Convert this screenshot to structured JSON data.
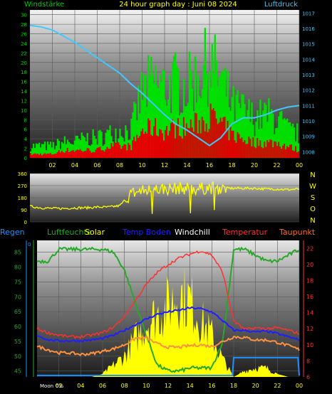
{
  "title": "24 hour graph day : Juni 08 2024",
  "colors": {
    "wind_gust": "#00e000",
    "wind_avg": "#e00000",
    "pressure": "#40c8ff",
    "direction": "#ffff00",
    "humidity": "#28a828",
    "solar": "#ffff00",
    "temp_ground": "#2020ff",
    "temperature": "#ff3030",
    "dewpoint": "#ff9040",
    "windchill": "#ffffff",
    "rain": "#1e90ff"
  },
  "chart_data": [
    {
      "type": "bar",
      "title": "24 hour graph day : Juni 08 2024",
      "left_axis_label": "Windstärke",
      "right_axis_label": "Luftdruck",
      "x_ticks": [
        "02",
        "04",
        "06",
        "08",
        "10",
        "12",
        "14",
        "16",
        "18",
        "20",
        "22",
        "00"
      ],
      "y_left_ticks": [
        "0",
        "2",
        "4",
        "6",
        "8",
        "10",
        "12",
        "14",
        "16",
        "18",
        "20",
        "22",
        "24",
        "26",
        "28",
        "30"
      ],
      "y_left_range": [
        0,
        31
      ],
      "y_right_ticks": [
        "1008",
        "1009",
        "1010",
        "1011",
        "1012",
        "1013",
        "1014",
        "1015",
        "1016",
        "1017"
      ],
      "y_right_range": [
        1007.6,
        1017.2
      ],
      "series": [
        {
          "name": "gust",
          "hours": [
            0,
            1,
            2,
            3,
            4,
            5,
            6,
            7,
            8,
            9,
            10,
            11,
            12,
            13,
            14,
            15,
            16,
            17,
            18,
            19,
            20,
            21,
            22,
            23,
            24
          ],
          "values": [
            3,
            3,
            3,
            4,
            4,
            5,
            5,
            6,
            7,
            7,
            17,
            19,
            18,
            19,
            18,
            21,
            24,
            20,
            13,
            12,
            10,
            11,
            10,
            7,
            6
          ]
        },
        {
          "name": "average",
          "hours": [
            0,
            1,
            2,
            3,
            4,
            5,
            6,
            7,
            8,
            9,
            10,
            11,
            12,
            13,
            14,
            15,
            16,
            17,
            18,
            19,
            20,
            21,
            22,
            23,
            24
          ],
          "values": [
            1,
            1,
            1,
            2,
            2,
            2,
            2,
            3,
            3,
            3,
            7,
            8,
            7,
            8,
            8,
            9,
            11,
            9,
            6,
            5,
            4,
            4,
            4,
            3,
            2
          ]
        },
        {
          "name": "Luftdruck",
          "axis": "right",
          "hours": [
            0,
            1,
            2,
            3,
            4,
            5,
            6,
            7,
            8,
            9,
            10,
            11,
            12,
            13,
            14,
            15,
            16,
            17,
            18,
            19,
            20,
            21,
            22,
            23,
            24
          ],
          "values": [
            1016.2,
            1016.1,
            1015.9,
            1015.5,
            1015.1,
            1014.6,
            1014.1,
            1013.6,
            1013.1,
            1012.4,
            1011.8,
            1011.1,
            1010.4,
            1009.8,
            1009.4,
            1008.9,
            1008.4,
            1008.9,
            1009.8,
            1010.2,
            1010.2,
            1010.4,
            1010.7,
            1010.9,
            1011.0
          ]
        }
      ]
    },
    {
      "type": "line",
      "y_ticks": [
        "360",
        "270",
        "180",
        "90",
        "0"
      ],
      "y_range": [
        0,
        360
      ],
      "compass_labels": [
        "N",
        "W",
        "S",
        "O",
        "N"
      ],
      "series": [
        {
          "name": "direction",
          "hours": [
            0,
            1,
            2,
            3,
            4,
            5,
            6,
            7,
            8,
            9,
            10,
            11,
            12,
            13,
            14,
            15,
            16,
            17,
            18,
            19,
            20,
            21,
            22,
            23,
            24
          ],
          "values": [
            115,
            105,
            100,
            100,
            105,
            105,
            110,
            110,
            120,
            210,
            230,
            240,
            245,
            250,
            250,
            245,
            255,
            250,
            250,
            250,
            250,
            245,
            245,
            240,
            245
          ]
        }
      ]
    },
    {
      "type": "line",
      "legend": [
        "Regen",
        "Luftfeuchte",
        "Solar",
        "Temp Boden",
        "Windchill",
        "Temperatur",
        "Taupunkt"
      ],
      "left_ticks": [
        "45",
        "50",
        "55",
        "60",
        "65",
        "70",
        "75",
        "80",
        "85"
      ],
      "left_range": [
        43,
        89
      ],
      "right_ticks": [
        "6",
        "8",
        "10",
        "12",
        "14",
        "16",
        "18",
        "20",
        "22"
      ],
      "right_range": [
        6,
        23
      ],
      "rain_tick": "0",
      "x_ticks": [
        "02",
        "04",
        "06",
        "08",
        "10",
        "12",
        "14",
        "16",
        "18",
        "20",
        "22",
        "00"
      ],
      "moon_label": "Moon",
      "moon_value": "0%",
      "series": [
        {
          "name": "Luftfeuchte",
          "axis": "left",
          "hours": [
            0,
            1,
            2,
            3,
            4,
            5,
            6,
            7,
            8,
            9,
            10,
            11,
            12,
            13,
            14,
            15,
            16,
            17,
            18,
            19,
            20,
            21,
            22,
            23,
            24
          ],
          "values": [
            82,
            82,
            86,
            86,
            86,
            86,
            86,
            85,
            79,
            68,
            57,
            47,
            45,
            45,
            46,
            46,
            46,
            55,
            86,
            86,
            84,
            82,
            82,
            84,
            86
          ]
        },
        {
          "name": "Temperatur",
          "axis": "right",
          "hours": [
            0,
            1,
            2,
            3,
            4,
            5,
            6,
            7,
            8,
            9,
            10,
            11,
            12,
            13,
            14,
            15,
            16,
            17,
            18,
            19,
            20,
            21,
            22,
            23,
            24
          ],
          "values": [
            12.0,
            11.5,
            11.2,
            11.0,
            11.0,
            11.2,
            11.5,
            12.2,
            13.5,
            15.5,
            17.5,
            19.0,
            20.0,
            20.8,
            21.3,
            21.7,
            21.2,
            19.0,
            13.0,
            11.9,
            12.1,
            12.0,
            12.1,
            11.8,
            11.4
          ]
        },
        {
          "name": "Temp Boden",
          "axis": "right",
          "hours": [
            0,
            1,
            2,
            3,
            4,
            5,
            6,
            7,
            8,
            9,
            10,
            11,
            12,
            13,
            14,
            15,
            16,
            17,
            18,
            19,
            20,
            21,
            22,
            23,
            24
          ],
          "values": [
            11.2,
            10.6,
            10.5,
            10.5,
            10.5,
            10.6,
            10.8,
            11.2,
            11.8,
            12.5,
            13.2,
            13.8,
            14.1,
            14.3,
            14.6,
            14.5,
            14.1,
            13.0,
            11.8,
            11.8,
            11.6,
            11.7,
            11.4,
            11.0,
            10.6
          ]
        },
        {
          "name": "Taupunkt",
          "axis": "right",
          "hours": [
            0,
            1,
            2,
            3,
            4,
            5,
            6,
            7,
            8,
            9,
            10,
            11,
            12,
            13,
            14,
            15,
            16,
            17,
            18,
            19,
            20,
            21,
            22,
            23,
            24
          ],
          "values": [
            9.8,
            9.4,
            9.0,
            9.0,
            8.8,
            8.9,
            9.2,
            9.5,
            10.0,
            10.8,
            10.9,
            10.1,
            9.7,
            9.7,
            9.9,
            10.0,
            9.8,
            10.4,
            11.0,
            10.9,
            10.6,
            10.6,
            10.3,
            9.9,
            9.4
          ]
        },
        {
          "name": "Solar",
          "axis": "left",
          "hours": [
            0,
            5,
            6,
            7,
            8,
            9,
            10,
            11,
            12,
            13,
            14,
            15,
            16,
            17,
            18,
            19,
            20,
            21,
            22,
            23,
            24
          ],
          "values": [
            43,
            43,
            44,
            47,
            50,
            56,
            61,
            64,
            67,
            71,
            69,
            62,
            57,
            49,
            43,
            45,
            46,
            46,
            44,
            43,
            43
          ]
        },
        {
          "name": "Regen",
          "axis": "left",
          "hours": [
            0,
            17.9,
            18.0,
            23.9,
            24
          ],
          "values": [
            43.5,
            43.5,
            49.5,
            49.5,
            43.5
          ]
        }
      ]
    }
  ]
}
